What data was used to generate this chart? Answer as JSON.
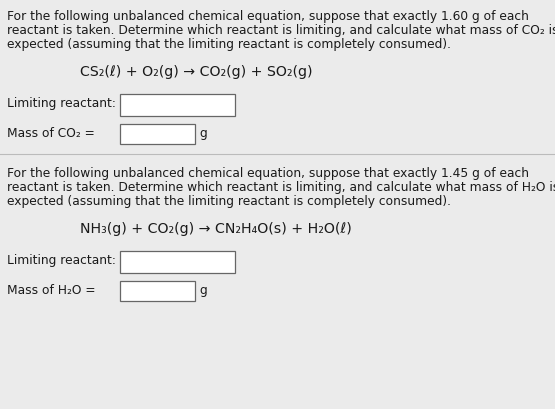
{
  "bg_color": "#ebebeb",
  "panel1": {
    "intro_line1": "For the following unbalanced chemical equation, suppose that exactly 1.60 g of each",
    "intro_line2": "reactant is taken. Determine which reactant is limiting, and calculate what mass of CO₂ is",
    "intro_line3": "expected (assuming that the limiting reactant is completely consumed).",
    "equation": "CS₂(ℓ) + O₂(g) → CO₂(g) + SO₂(g)",
    "label1": "Limiting reactant:",
    "label2": "Mass of CO₂ =",
    "unit": "g"
  },
  "panel2": {
    "intro_line1": "For the following unbalanced chemical equation, suppose that exactly 1.45 g of each",
    "intro_line2": "reactant is taken. Determine which reactant is limiting, and calculate what mass of H₂O is",
    "intro_line3": "expected (assuming that the limiting reactant is completely consumed).",
    "equation": "NH₃(g) + CO₂(g) → CN₂H₄O(s) + H₂O(ℓ)",
    "label1": "Limiting reactant:",
    "label2": "Mass of H₂O =",
    "unit": "g"
  },
  "text_color": "#1a1a1a",
  "box_color": "#ffffff",
  "box_edge_color": "#666666",
  "divider_color": "#bbbbbb",
  "fs_body": 8.8,
  "fs_eq": 10.2
}
